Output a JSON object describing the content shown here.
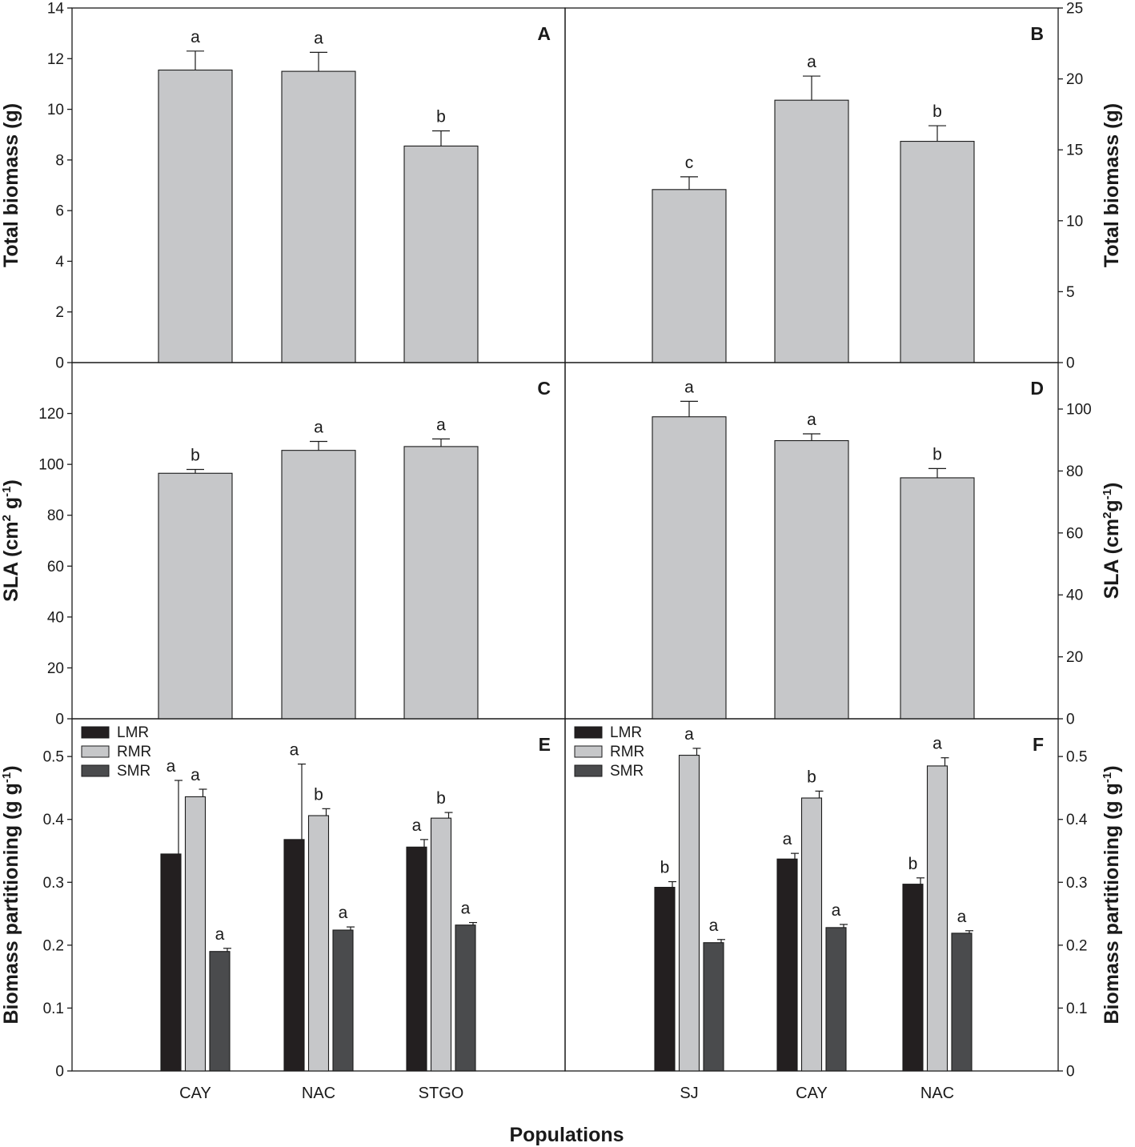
{
  "figure": {
    "xlabel": "Populations",
    "colors": {
      "single": "#c6c7c9",
      "LMR": "#231f20",
      "RMR": "#c6c7c9",
      "SMR": "#4a4b4d",
      "axis": "#1a1a1a"
    }
  },
  "chart_data": [
    {
      "panel": "A",
      "type": "bar",
      "side": "left",
      "categories": [
        "CAY",
        "NAC",
        "STGO"
      ],
      "series": [
        {
          "name": "Total biomass",
          "values": [
            11.55,
            11.5,
            8.55
          ],
          "errors": [
            0.75,
            0.75,
            0.6
          ],
          "letters": [
            "a",
            "a",
            "b"
          ]
        }
      ],
      "ylabel": "Total biomass (g)",
      "ylabel_parts": [
        "Total biomass (g)"
      ],
      "ylim": [
        0,
        14
      ],
      "yticks": [
        0,
        2,
        4,
        6,
        8,
        10,
        12,
        14
      ]
    },
    {
      "panel": "B",
      "type": "bar",
      "side": "right",
      "categories": [
        "SJ",
        "CAY",
        "NAC"
      ],
      "series": [
        {
          "name": "Total biomass",
          "values": [
            12.2,
            18.5,
            15.6
          ],
          "errors": [
            0.9,
            1.7,
            1.1
          ],
          "letters": [
            "c",
            "a",
            "b"
          ]
        }
      ],
      "ylabel": "Total biomass (g)",
      "ylabel_parts": [
        "Total biomass (g)"
      ],
      "ylim": [
        0,
        25
      ],
      "yticks": [
        0,
        5,
        10,
        15,
        20,
        25
      ]
    },
    {
      "panel": "C",
      "type": "bar",
      "side": "left",
      "categories": [
        "CAY",
        "NAC",
        "STGO"
      ],
      "series": [
        {
          "name": "SLA",
          "values": [
            96.5,
            105.5,
            107.0
          ],
          "errors": [
            1.5,
            3.5,
            3.0
          ],
          "letters": [
            "b",
            "a",
            "a"
          ]
        }
      ],
      "ylabel": "SLA (cm2 g-1)",
      "ylabel_parts": [
        "SLA (cm",
        "2",
        " g",
        "-1",
        ")"
      ],
      "ylim": [
        0,
        140
      ],
      "yticks": [
        0,
        20,
        40,
        60,
        80,
        100,
        120
      ]
    },
    {
      "panel": "D",
      "type": "bar",
      "side": "right",
      "categories": [
        "SJ",
        "CAY",
        "NAC"
      ],
      "series": [
        {
          "name": "SLA",
          "values": [
            97.5,
            89.8,
            77.8
          ],
          "errors": [
            5.0,
            2.2,
            3.0
          ],
          "letters": [
            "a",
            "a",
            "b"
          ]
        }
      ],
      "ylabel": "SLA (cm2g-1)",
      "ylabel_parts": [
        "SLA (cm",
        "2",
        "g",
        "-1",
        ")"
      ],
      "ylim": [
        0,
        115
      ],
      "yticks": [
        0,
        20,
        40,
        60,
        80,
        100
      ]
    },
    {
      "panel": "E",
      "type": "bar",
      "side": "left",
      "categories": [
        "CAY",
        "NAC",
        "STGO"
      ],
      "series": [
        {
          "name": "LMR",
          "values": [
            0.345,
            0.368,
            0.356
          ],
          "errors": [
            0.117,
            0.12,
            0.012
          ],
          "letters": [
            "a",
            "a",
            "a"
          ]
        },
        {
          "name": "RMR",
          "values": [
            0.436,
            0.406,
            0.402
          ],
          "errors": [
            0.012,
            0.011,
            0.009
          ],
          "letters": [
            "a",
            "b",
            "b"
          ]
        },
        {
          "name": "SMR",
          "values": [
            0.19,
            0.224,
            0.232
          ],
          "errors": [
            0.005,
            0.005,
            0.004
          ],
          "letters": [
            "a",
            "a",
            "a"
          ]
        }
      ],
      "legend": [
        "LMR",
        "RMR",
        "SMR"
      ],
      "ylabel": "Biomass partitioning (g g-1)",
      "ylabel_parts": [
        "Biomass partitioning (g g",
        "-1",
        ")"
      ],
      "ylim": [
        0,
        0.56
      ],
      "yticks": [
        0,
        0.1,
        0.2,
        0.3,
        0.4,
        0.5
      ]
    },
    {
      "panel": "F",
      "type": "bar",
      "side": "right",
      "categories": [
        "SJ",
        "CAY",
        "NAC"
      ],
      "series": [
        {
          "name": "LMR",
          "values": [
            0.292,
            0.337,
            0.297
          ],
          "errors": [
            0.009,
            0.009,
            0.01
          ],
          "letters": [
            "b",
            "a",
            "b"
          ]
        },
        {
          "name": "RMR",
          "values": [
            0.502,
            0.434,
            0.485
          ],
          "errors": [
            0.011,
            0.011,
            0.013
          ],
          "letters": [
            "a",
            "b",
            "a"
          ]
        },
        {
          "name": "SMR",
          "values": [
            0.204,
            0.228,
            0.219
          ],
          "errors": [
            0.005,
            0.005,
            0.004
          ],
          "letters": [
            "a",
            "a",
            "a"
          ]
        }
      ],
      "legend": [
        "LMR",
        "RMR",
        "SMR"
      ],
      "ylabel": "Biomass partitioning (g g-1)",
      "ylabel_parts": [
        "Biomass partitioning (g g",
        "-1",
        ")"
      ],
      "ylim": [
        0,
        0.56
      ],
      "yticks": [
        0,
        0.1,
        0.2,
        0.3,
        0.4,
        0.5
      ]
    }
  ]
}
